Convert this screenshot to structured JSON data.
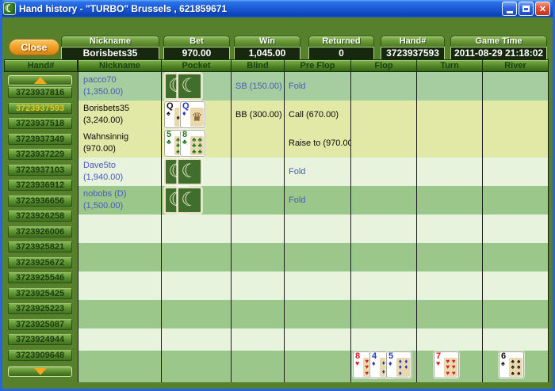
{
  "window": {
    "title": "Hand history - \"TURBO\" Brussels , 621859671",
    "controls": {
      "minimize": "minimize",
      "maximize": "maximize",
      "close": "close"
    }
  },
  "toolbar": {
    "close_label": "Close"
  },
  "summary": {
    "fields": [
      {
        "label": "Nickname",
        "value": "Borisbets35"
      },
      {
        "label": "Bet",
        "value": "970.00"
      },
      {
        "label": "Win",
        "value": "1,045.00"
      },
      {
        "label": "Returned",
        "value": "0"
      },
      {
        "label": "Hand#",
        "value": "3723937593"
      },
      {
        "label": "Game Time",
        "value": "2011-08-29 21:18:02"
      }
    ]
  },
  "sidebar": {
    "header": "Hand#",
    "selected_index": 1,
    "items": [
      "3723937816",
      "3723937593",
      "3723937518",
      "3723937349",
      "3723937229",
      "3723937103",
      "3723936912",
      "3723936656",
      "3723926258",
      "3723926006",
      "3723925821",
      "3723925672",
      "3723925546",
      "3723925425",
      "3723925223",
      "3723925087",
      "3723924944",
      "3723909648"
    ]
  },
  "table": {
    "headers": [
      "Nickname",
      "Pocket",
      "Blind",
      "Pre Flop",
      "Flop",
      "Turn",
      "River"
    ],
    "rows": [
      {
        "nickname": "pacco70",
        "stack": "(1,350.00)",
        "folded": true,
        "bg": "M1",
        "pocket": "backs",
        "blind": "SB (150.00)",
        "preflop": "Fold"
      },
      {
        "nickname": "Borisbets35",
        "stack": "(3,240.00)",
        "folded": false,
        "bg": "Y",
        "pocket": [
          {
            "rank": "Q",
            "suit": "spade"
          },
          {
            "rank": "Q",
            "suit": "diamond",
            "face": true
          }
        ],
        "blind": "BB (300.00)",
        "preflop": "Call (670.00)"
      },
      {
        "nickname": "Wahnsinnig",
        "stack": "(970.00)",
        "folded": false,
        "bg": "Y",
        "pocket": [
          {
            "rank": "5",
            "suit": "club"
          },
          {
            "rank": "8",
            "suit": "club"
          }
        ],
        "blind": "",
        "preflop": "Raise to (970.00)"
      },
      {
        "nickname": "Dave5to",
        "stack": "(1,940.00)",
        "folded": true,
        "bg": "L",
        "pocket": "backs",
        "blind": "",
        "preflop": "Fold"
      },
      {
        "nickname": "nobobs (D)",
        "stack": "(1,500.00)",
        "folded": true,
        "bg": "M",
        "pocket": "backs",
        "blind": "",
        "preflop": "Fold"
      }
    ],
    "board": {
      "flop": [
        {
          "rank": "8",
          "suit": "heart"
        },
        {
          "rank": "4",
          "suit": "diamond"
        },
        {
          "rank": "5",
          "suit": "diamond"
        }
      ],
      "turn": [
        {
          "rank": "7",
          "suit": "heart"
        }
      ],
      "river": [
        {
          "rank": "6",
          "suit": "spade"
        }
      ]
    }
  },
  "colors": {
    "accent_orange": "#f2a71f",
    "selected_hand_text": "#ecc41e",
    "folded_text": "#4a5ab8",
    "action_text": "#0a0a0a",
    "suit_heart": "#d42020",
    "suit_diamond": "#2438c8",
    "suit_spade": "#111111",
    "suit_club": "#1f7a1f",
    "card_back_green": "#3f6e2d"
  }
}
